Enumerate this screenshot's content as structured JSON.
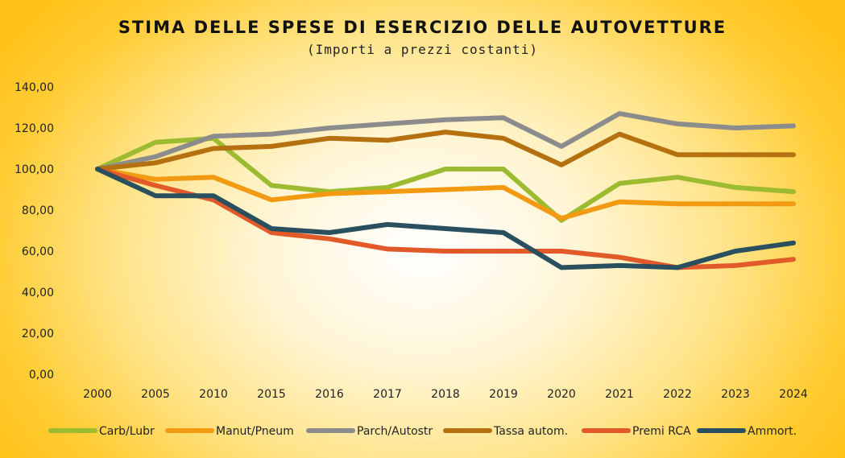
{
  "chart_data": {
    "type": "line",
    "title": "STIMA DELLE SPESE DI ESERCIZIO DELLE AUTOVETTURE",
    "subtitle": "(Importi a prezzi costanti)",
    "xlabel": "",
    "ylabel": "",
    "categories": [
      "2000",
      "2005",
      "2010",
      "2015",
      "2016",
      "2017",
      "2018",
      "2019",
      "2020",
      "2021",
      "2022",
      "2023",
      "2024"
    ],
    "ylim": [
      0,
      140
    ],
    "yticks": [
      "0,00",
      "20,00",
      "40,00",
      "60,00",
      "80,00",
      "100,00",
      "120,00",
      "140,00"
    ],
    "grid": false,
    "legend_position": "bottom",
    "series": [
      {
        "name": "Carb/Lubr",
        "color": "#9dbb30",
        "values": [
          100,
          113,
          115,
          92,
          89,
          91,
          100,
          100,
          75,
          93,
          96,
          91,
          89
        ]
      },
      {
        "name": "Manut/Pneum",
        "color": "#f29a12",
        "values": [
          100,
          95,
          96,
          85,
          88,
          89,
          90,
          91,
          76,
          84,
          83,
          83,
          83
        ]
      },
      {
        "name": "Parch/Autostr",
        "color": "#8c8c8c",
        "values": [
          100,
          106,
          116,
          117,
          120,
          122,
          124,
          125,
          111,
          127,
          122,
          120,
          121
        ]
      },
      {
        "name": "Tassa autom.",
        "color": "#b5700f",
        "values": [
          100,
          103,
          110,
          111,
          115,
          114,
          118,
          115,
          102,
          117,
          107,
          107,
          107
        ]
      },
      {
        "name": "Premi RCA",
        "color": "#e25a2a",
        "values": [
          100,
          92,
          85,
          69,
          66,
          61,
          60,
          60,
          60,
          57,
          52,
          53,
          56
        ]
      },
      {
        "name": "Ammort.",
        "color": "#2a4f5e",
        "values": [
          100,
          87,
          87,
          71,
          69,
          73,
          71,
          69,
          52,
          53,
          52,
          60,
          64
        ]
      }
    ]
  }
}
